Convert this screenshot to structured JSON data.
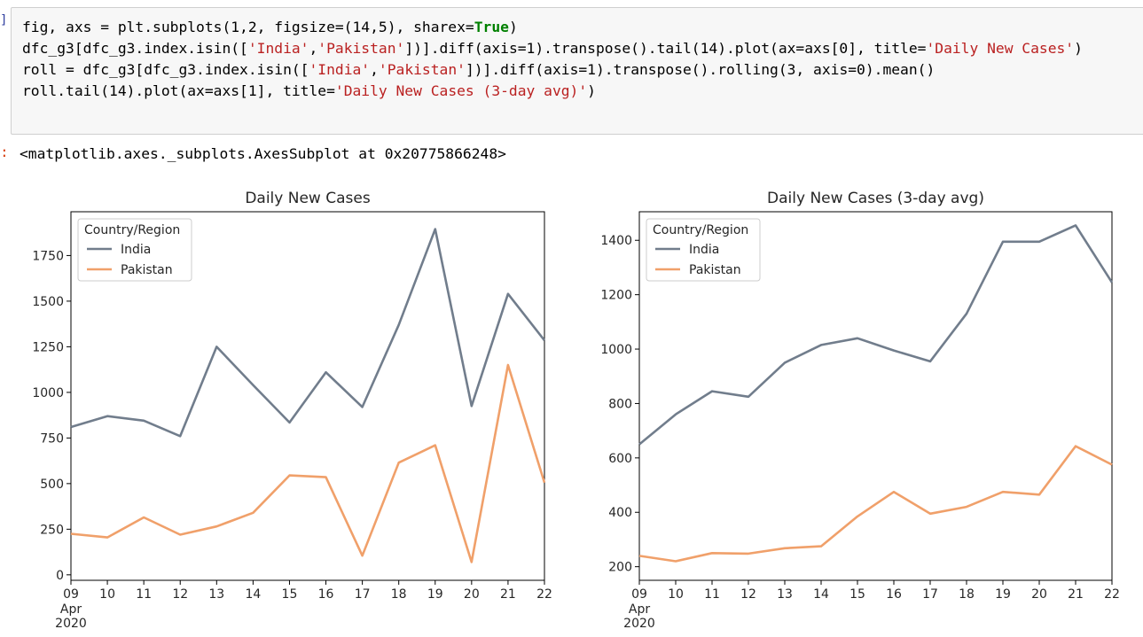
{
  "cell": {
    "prompt_glyph": "]",
    "code_lines": [
      [
        {
          "t": "fig, axs = plt.subplots(1,2, figsize=(14,5), sharex="
        },
        {
          "t": "True",
          "c": "b"
        },
        {
          "t": ")"
        }
      ],
      [
        {
          "t": "dfc_g3[dfc_g3.index.isin(["
        },
        {
          "t": "'India'",
          "c": "s"
        },
        {
          "t": ","
        },
        {
          "t": "'Pakistan'",
          "c": "s"
        },
        {
          "t": "])].diff(axis=1).transpose().tail(14).plot(ax=axs[0], title="
        },
        {
          "t": "'Daily New Cases'",
          "c": "s"
        },
        {
          "t": ")"
        }
      ],
      [
        {
          "t": "roll = dfc_g3[dfc_g3.index.isin(["
        },
        {
          "t": "'India'",
          "c": "s"
        },
        {
          "t": ","
        },
        {
          "t": "'Pakistan'",
          "c": "s"
        },
        {
          "t": "])].diff(axis=1).transpose().rolling(3, axis=0).mean()"
        }
      ],
      [
        {
          "t": "roll.tail(14).plot(ax=axs[1], title="
        },
        {
          "t": "'Daily New Cases (3-day avg)'",
          "c": "s"
        },
        {
          "t": ")"
        }
      ]
    ],
    "output_prompt": ":",
    "output_text": "<matplotlib.axes._subplots.AxesSubplot at 0x20775866248>"
  },
  "chart_data": [
    {
      "type": "line",
      "title": "Daily New Cases",
      "xlabel": "",
      "ylabel": "",
      "x": [
        "09",
        "10",
        "11",
        "12",
        "13",
        "14",
        "15",
        "16",
        "17",
        "18",
        "19",
        "20",
        "21",
        "22"
      ],
      "x_sublabels": [
        "Apr",
        "2020"
      ],
      "ylim": [
        -30,
        1990
      ],
      "yticks": [
        0,
        250,
        500,
        750,
        1000,
        1250,
        1500,
        1750
      ],
      "legend": {
        "title": "Country/Region",
        "placement": "top-left"
      },
      "series": [
        {
          "name": "India",
          "color": "#717d8c",
          "values": [
            810,
            870,
            845,
            760,
            1250,
            1040,
            835,
            1110,
            920,
            1370,
            1895,
            925,
            1540,
            1285
          ]
        },
        {
          "name": "Pakistan",
          "color": "#f0a06a",
          "values": [
            225,
            205,
            315,
            220,
            265,
            340,
            545,
            535,
            105,
            615,
            710,
            70,
            1150,
            505
          ]
        }
      ]
    },
    {
      "type": "line",
      "title": "Daily New Cases (3-day avg)",
      "xlabel": "",
      "ylabel": "",
      "x": [
        "09",
        "10",
        "11",
        "12",
        "13",
        "14",
        "15",
        "16",
        "17",
        "18",
        "19",
        "20",
        "21",
        "22"
      ],
      "x_sublabels": [
        "Apr",
        "2020"
      ],
      "ylim": [
        150,
        1505
      ],
      "yticks": [
        200,
        400,
        600,
        800,
        1000,
        1200,
        1400
      ],
      "legend": {
        "title": "Country/Region",
        "placement": "top-left"
      },
      "series": [
        {
          "name": "India",
          "color": "#717d8c",
          "values": [
            650,
            760,
            845,
            825,
            950,
            1015,
            1040,
            995,
            955,
            1130,
            1395,
            1395,
            1455,
            1245
          ]
        },
        {
          "name": "Pakistan",
          "color": "#f0a06a",
          "values": [
            240,
            220,
            250,
            248,
            268,
            275,
            385,
            475,
            395,
            420,
            475,
            465,
            643,
            575
          ]
        }
      ]
    }
  ]
}
